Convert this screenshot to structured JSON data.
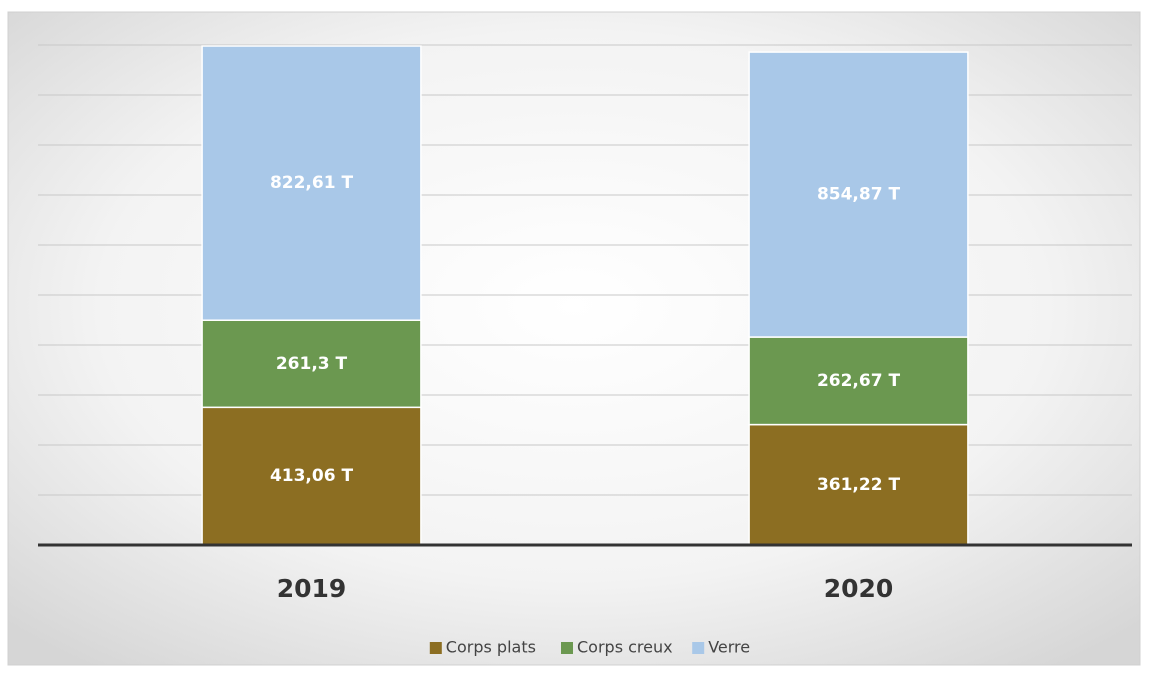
{
  "chart_data": {
    "type": "stacked_bar",
    "categories": [
      "2019",
      "2020"
    ],
    "series": [
      {
        "name": "Corps plats",
        "color": "#8c6e22",
        "values": [
          413.06,
          361.22
        ],
        "value_labels": [
          "413,06 T",
          "361,22 T"
        ]
      },
      {
        "name": "Corps creux",
        "color": "#6b9850",
        "values": [
          261.3,
          262.67
        ],
        "value_labels": [
          "261,3 T",
          "262,67 T"
        ]
      },
      {
        "name": "Verre",
        "color": "#a9c8e8",
        "values": [
          822.61,
          854.87
        ],
        "value_labels": [
          "822,61 T",
          "854,87 T"
        ]
      }
    ],
    "ylim": [
      0,
      1500
    ],
    "yticks": [
      0,
      150,
      300,
      450,
      600,
      750,
      900,
      1050,
      1200,
      1350,
      1500
    ],
    "grid": true,
    "legend": "bottom"
  }
}
